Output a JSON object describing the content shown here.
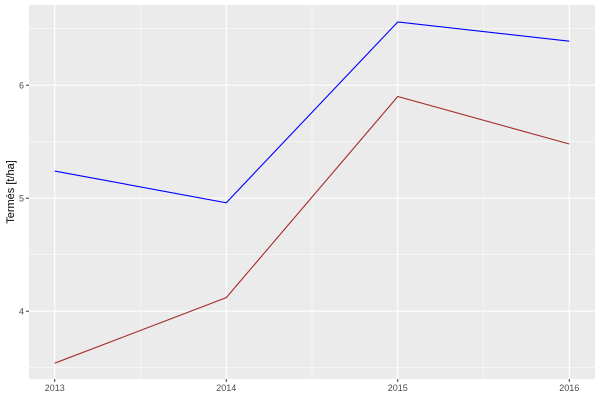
{
  "chart_data": {
    "type": "line",
    "title": "",
    "xlabel": "",
    "ylabel": "Termés [t/ha]",
    "x": [
      2013,
      2014,
      2015,
      2016
    ],
    "x_tick_labels": [
      "2013",
      "2014",
      "2015",
      "2016"
    ],
    "y_ticks": [
      4,
      5,
      6
    ],
    "y_tick_labels": [
      "4",
      "5",
      "6"
    ],
    "xlim": [
      2012.85,
      2016.15
    ],
    "ylim": [
      3.4,
      6.71
    ],
    "grid": true,
    "legend": "none",
    "series": [
      {
        "color": "#0000ff",
        "values": [
          5.24,
          4.96,
          6.56,
          6.39
        ]
      },
      {
        "color": "#a52a2a",
        "values": [
          3.54,
          4.12,
          5.9,
          5.48
        ]
      }
    ],
    "colors": {
      "panel": "#ebebeb",
      "grid": "#ffffff",
      "tick_text": "#4d4d4d"
    }
  }
}
